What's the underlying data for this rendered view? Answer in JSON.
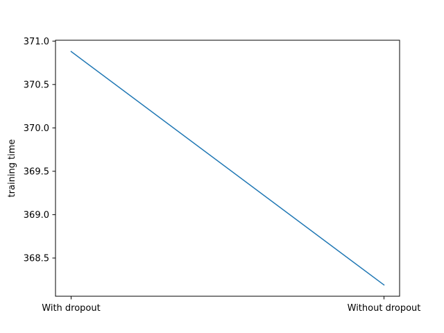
{
  "chart_data": {
    "type": "line",
    "categories": [
      "With dropout",
      "Without dropout"
    ],
    "series": [
      {
        "values": [
          370.88,
          368.19
        ],
        "color": "#1f77b4"
      }
    ],
    "title": "",
    "xlabel": "",
    "ylabel": "training time",
    "ylim": [
      368.06,
      371.01
    ],
    "yticks": [
      368.5,
      369.0,
      369.5,
      370.0,
      370.5,
      371.0
    ],
    "ytick_labels": [
      "368.5",
      "369.0",
      "369.5",
      "370.0",
      "370.5",
      "371.0"
    ],
    "grid": false,
    "legend": "none"
  }
}
